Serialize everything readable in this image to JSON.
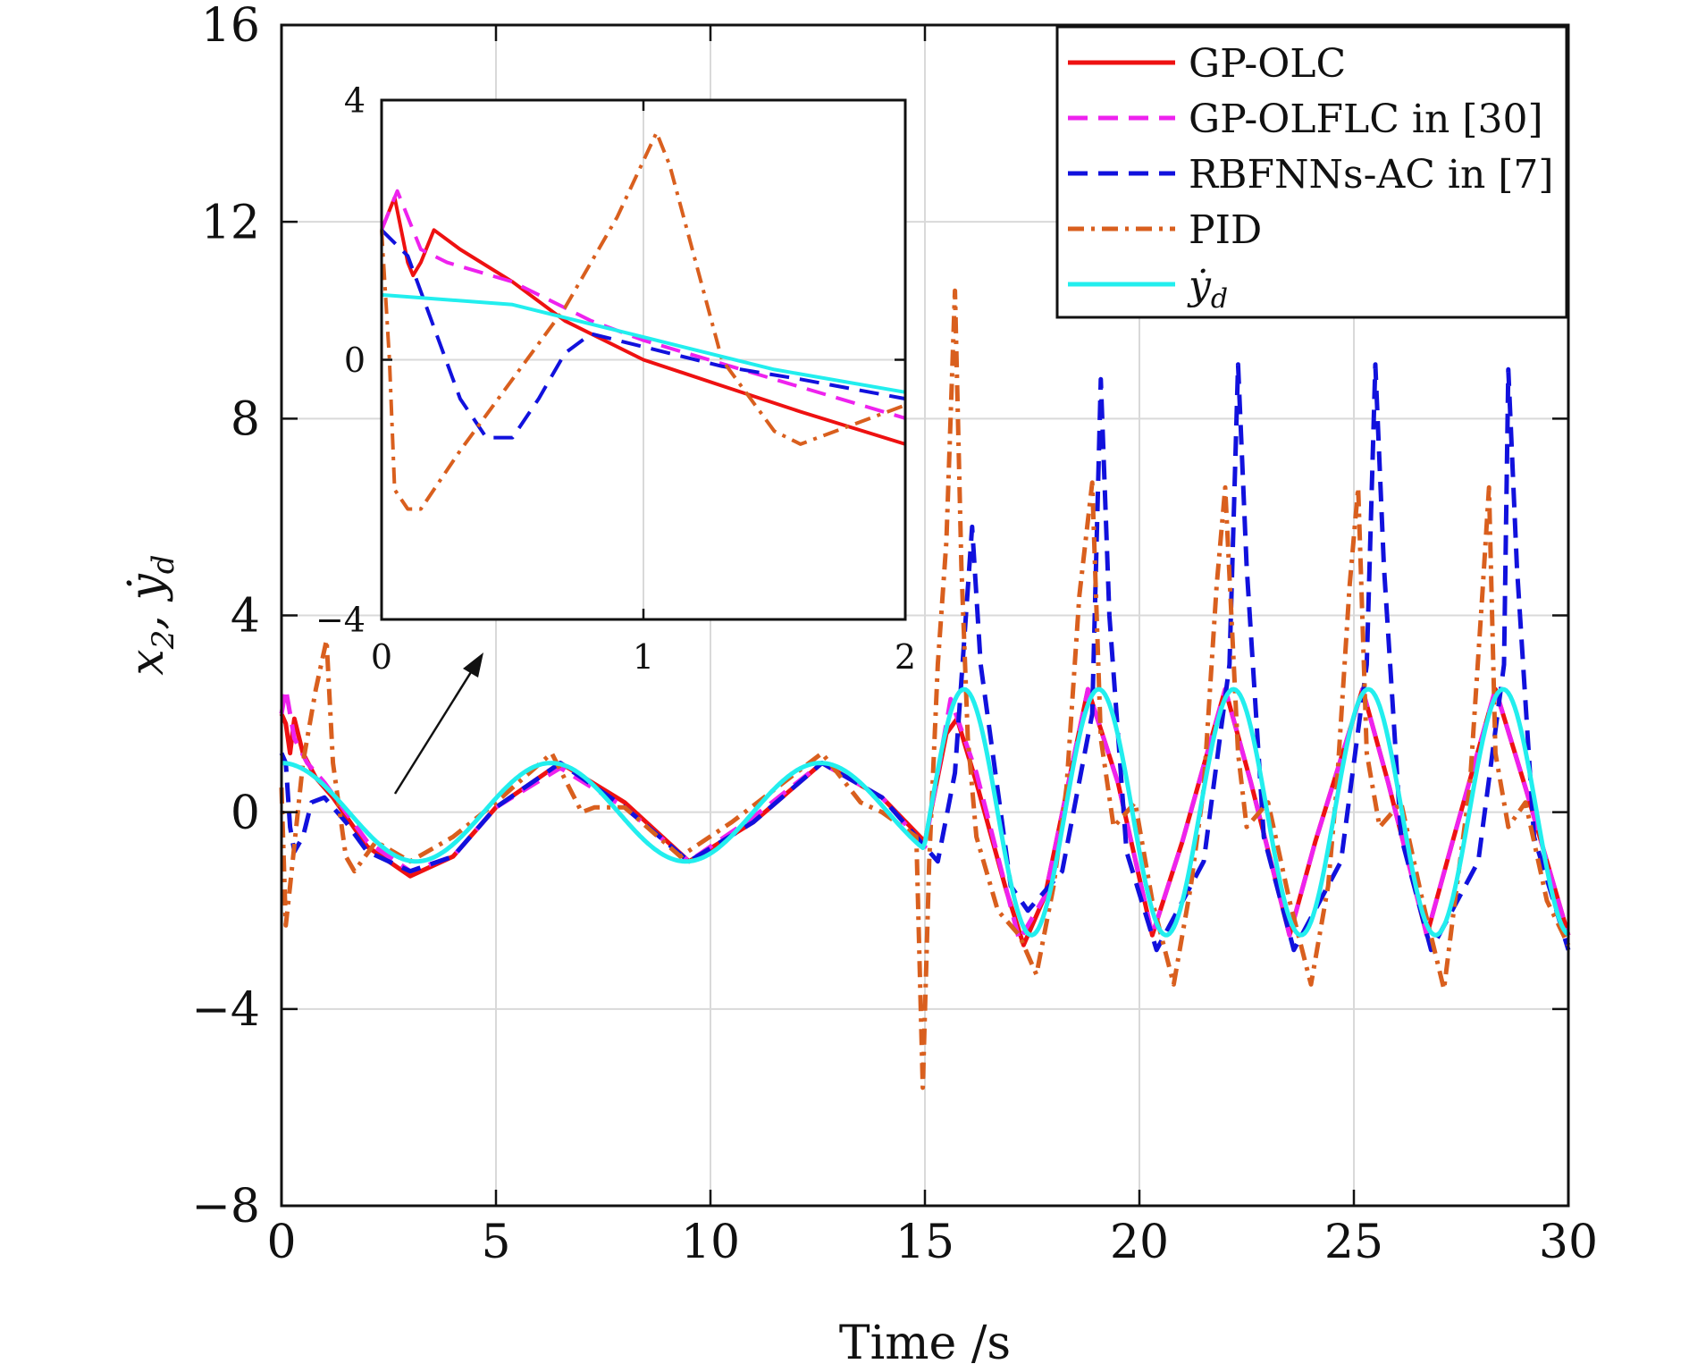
{
  "chart_data": [
    {
      "type": "line",
      "xlabel": "Time /s",
      "ylabel": "x_2, ẏ_d",
      "xlim": [
        0,
        30
      ],
      "ylim": [
        -8,
        16
      ],
      "xticks": [
        0,
        5,
        10,
        15,
        20,
        25,
        30
      ],
      "yticks": [
        -8,
        -4,
        0,
        4,
        8,
        12,
        16
      ],
      "xtick_labels": [
        "0",
        "5",
        "10",
        "15",
        "20",
        "25",
        "30"
      ],
      "ytick_labels": [
        "−8",
        "−4",
        "0",
        "4",
        "8",
        "12",
        "16"
      ],
      "grid": true,
      "legend_position": "top-right",
      "series": [
        {
          "name": "GP-OLC",
          "color": "#ee1111",
          "dash": "solid",
          "x": [
            0,
            0.1,
            0.2,
            0.3,
            0.5,
            0.8,
            1.2,
            2.0,
            3.0,
            4.0,
            5.0,
            6.5,
            8.0,
            9.5,
            11.0,
            12.6,
            14.0,
            15.0,
            15.5,
            15.75,
            16.2,
            16.9,
            17.3,
            17.8,
            18.8,
            19.5,
            20.3,
            21.0,
            22.0,
            22.6,
            23.5,
            24.1,
            25.2,
            25.8,
            26.7,
            27.3,
            28.3,
            29.0,
            30.0
          ],
          "y": [
            2.0,
            1.8,
            1.2,
            1.9,
            1.2,
            0.7,
            0.3,
            -0.7,
            -1.3,
            -0.9,
            0.1,
            1.0,
            0.2,
            -1.0,
            -0.2,
            1.0,
            0.3,
            -0.6,
            1.6,
            1.9,
            0.6,
            -1.6,
            -2.7,
            -1.7,
            2.5,
            0.6,
            -2.5,
            -0.6,
            2.5,
            0.6,
            -2.5,
            -0.6,
            2.5,
            0.6,
            -2.5,
            -0.6,
            2.5,
            0.5,
            -2.5
          ]
        },
        {
          "name": "GP-OLFLC in [30]",
          "color": "#ee22ee",
          "dash": "dashed",
          "x": [
            0,
            0.1,
            0.3,
            0.6,
            1.0,
            2.0,
            3.0,
            4.0,
            5.0,
            6.5,
            8.0,
            9.5,
            11.0,
            12.6,
            14.0,
            15.0,
            15.6,
            16.2,
            17.2,
            17.8,
            18.8,
            19.5,
            20.3,
            21.0,
            22.0,
            22.6,
            23.5,
            24.1,
            25.2,
            25.8,
            26.7,
            27.3,
            28.3,
            29.0,
            30.0
          ],
          "y": [
            2.0,
            2.5,
            1.5,
            1.0,
            0.6,
            -0.6,
            -1.2,
            -0.9,
            0.1,
            0.9,
            0.1,
            -1.0,
            -0.1,
            1.0,
            0.3,
            -0.7,
            2.3,
            0.8,
            -2.6,
            -1.7,
            2.5,
            0.6,
            -2.5,
            -0.6,
            2.5,
            0.6,
            -2.5,
            -0.6,
            2.5,
            0.6,
            -2.5,
            -0.6,
            2.5,
            0.5,
            -2.5
          ]
        },
        {
          "name": "RBFNNs-AC in [7]",
          "color": "#1111dd",
          "dash": "dashed",
          "x": [
            0,
            0.1,
            0.2,
            0.3,
            0.5,
            0.7,
            1.0,
            1.5,
            2.0,
            3.0,
            4.0,
            5.0,
            6.5,
            8.0,
            9.5,
            11.0,
            12.6,
            14.0,
            15.0,
            15.3,
            15.7,
            16.1,
            16.3,
            17.0,
            17.4,
            18.2,
            18.9,
            19.1,
            19.3,
            19.7,
            20.4,
            21.5,
            22.1,
            22.3,
            22.5,
            22.9,
            23.6,
            24.7,
            25.3,
            25.5,
            25.7,
            26.1,
            26.8,
            27.9,
            28.5,
            28.6,
            28.8,
            29.2,
            30.0
          ],
          "y": [
            1.2,
            1.0,
            -0.3,
            -0.8,
            -0.5,
            0.2,
            0.3,
            -0.2,
            -0.8,
            -1.2,
            -0.9,
            0.1,
            1.0,
            0.1,
            -1.0,
            -0.2,
            1.0,
            0.3,
            -0.7,
            -1.0,
            0.8,
            5.8,
            3.0,
            -1.5,
            -2.0,
            -1.2,
            2.0,
            8.8,
            4.0,
            -0.8,
            -2.8,
            -1.0,
            3.0,
            9.1,
            5.0,
            -0.5,
            -2.8,
            -1.0,
            3.0,
            9.1,
            5.0,
            -0.5,
            -2.8,
            -1.0,
            3.0,
            9.0,
            5.0,
            -0.5,
            -2.8
          ]
        },
        {
          "name": "PID",
          "color": "#d95f1e",
          "dash": "dashdot",
          "x": [
            0,
            0.1,
            0.2,
            0.5,
            0.8,
            1.05,
            1.2,
            1.5,
            1.7,
            2.2,
            3.0,
            4.0,
            5.0,
            6.3,
            7.0,
            7.3,
            8.0,
            9.3,
            10.5,
            12.6,
            13.5,
            14.0,
            14.8,
            14.95,
            15.1,
            15.3,
            15.5,
            15.7,
            15.85,
            16.0,
            16.2,
            16.7,
            17.2,
            17.6,
            18.0,
            18.3,
            18.6,
            18.9,
            19.1,
            19.4,
            19.9,
            20.3,
            20.8,
            21.2,
            21.5,
            21.8,
            22.0,
            22.3,
            22.5,
            23.0,
            23.5,
            24.0,
            24.4,
            24.6,
            24.9,
            25.1,
            25.3,
            25.6,
            26.1,
            26.6,
            27.1,
            27.4,
            27.7,
            28.0,
            28.15,
            28.3,
            28.6,
            29.0,
            29.5,
            30.0
          ],
          "y": [
            0.5,
            -2.3,
            -1.5,
            1.0,
            2.5,
            3.5,
            1.0,
            -0.9,
            -1.2,
            -0.6,
            -1.0,
            -0.5,
            0.2,
            1.2,
            0.0,
            0.1,
            0.1,
            -0.9,
            -0.2,
            1.2,
            0.2,
            0.0,
            -0.5,
            -5.6,
            -1.0,
            3.0,
            5.5,
            10.6,
            5.0,
            1.5,
            -0.5,
            -2.0,
            -2.5,
            -3.3,
            -1.5,
            0.5,
            4.4,
            6.7,
            1.5,
            -0.3,
            0.2,
            -1.8,
            -3.5,
            -1.5,
            0.5,
            4.6,
            6.6,
            1.2,
            -0.3,
            0.2,
            -1.8,
            -3.5,
            -1.5,
            0.5,
            4.6,
            6.6,
            1.2,
            -0.3,
            0.2,
            -1.8,
            -3.6,
            -1.5,
            0.5,
            4.5,
            6.6,
            1.2,
            -0.3,
            0.2,
            -1.8,
            -2.7
          ]
        },
        {
          "name": "ẏ_d",
          "color": "#22eeee",
          "dash": "solid",
          "formula": "sin",
          "x": [],
          "y": []
        }
      ]
    },
    {
      "type": "line",
      "role": "inset",
      "xlim": [
        0,
        2
      ],
      "ylim": [
        -4,
        4
      ],
      "xticks": [
        0,
        1,
        2
      ],
      "yticks": [
        -4,
        0,
        4
      ],
      "xtick_labels": [
        "0",
        "1",
        "2"
      ],
      "ytick_labels": [
        "−4",
        "0",
        "4"
      ],
      "grid": true,
      "series": [
        {
          "name": "GP-OLC",
          "color": "#ee1111",
          "dash": "solid",
          "x": [
            0,
            0.05,
            0.1,
            0.12,
            0.15,
            0.2,
            0.3,
            0.5,
            0.7,
            1.0,
            1.3,
            1.6,
            2.0
          ],
          "y": [
            2.0,
            2.5,
            1.5,
            1.3,
            1.5,
            2.0,
            1.7,
            1.2,
            0.6,
            0.0,
            -0.4,
            -0.8,
            -1.3
          ]
        },
        {
          "name": "GP-OLFLC in [30]",
          "color": "#ee22ee",
          "dash": "dashed",
          "x": [
            0,
            0.06,
            0.15,
            0.25,
            0.5,
            0.8,
            1.0,
            1.5,
            2.0
          ],
          "y": [
            2.0,
            2.6,
            1.7,
            1.5,
            1.2,
            0.6,
            0.3,
            -0.3,
            -0.9
          ]
        },
        {
          "name": "RBFNNs-AC in [7]",
          "color": "#1111dd",
          "dash": "dashed",
          "x": [
            0,
            0.1,
            0.2,
            0.3,
            0.4,
            0.5,
            0.6,
            0.7,
            0.8,
            1.0,
            1.3,
            1.6,
            2.0
          ],
          "y": [
            2.0,
            1.6,
            0.5,
            -0.6,
            -1.2,
            -1.2,
            -0.6,
            0.1,
            0.4,
            0.2,
            -0.1,
            -0.3,
            -0.6
          ]
        },
        {
          "name": "PID",
          "color": "#d95f1e",
          "dash": "dashdot",
          "x": [
            0,
            0.03,
            0.05,
            0.1,
            0.15,
            0.3,
            0.5,
            0.7,
            0.9,
            1.05,
            1.1,
            1.3,
            1.5,
            1.6,
            1.8,
            2.0
          ],
          "y": [
            2.0,
            0.0,
            -2.0,
            -2.3,
            -2.3,
            -1.4,
            -0.3,
            0.8,
            2.2,
            3.5,
            3.0,
            0.0,
            -1.1,
            -1.3,
            -1.0,
            -0.7
          ]
        },
        {
          "name": "ẏ_d",
          "color": "#22eeee",
          "dash": "solid",
          "x": [
            0,
            0.5,
            1.0,
            1.5,
            2.0
          ],
          "y": [
            1.0,
            0.85,
            0.35,
            -0.15,
            -0.5
          ]
        }
      ]
    }
  ],
  "legend": {
    "entries": [
      "GP-OLC",
      "GP-OLFLC in [30]",
      "RBFNNs-AC in [7]",
      "PID",
      "ẏ_d"
    ]
  }
}
